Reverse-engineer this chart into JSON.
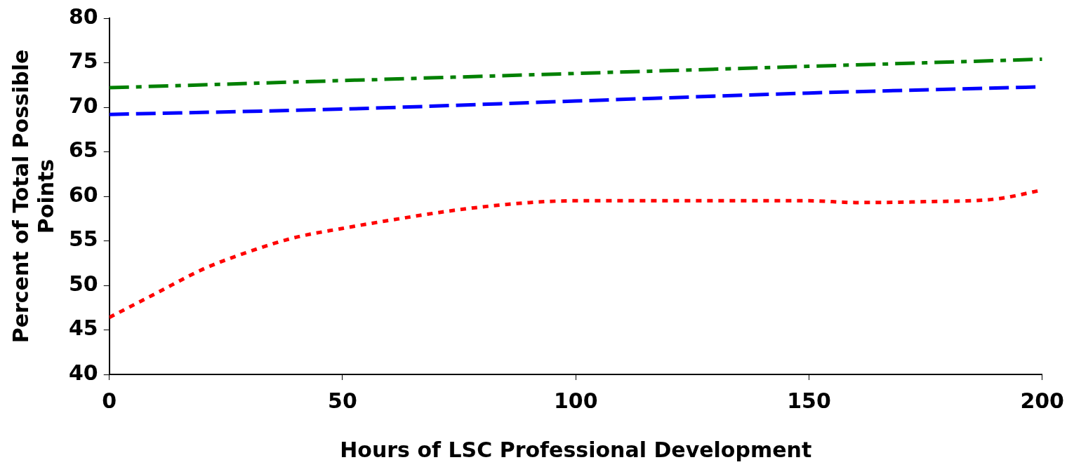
{
  "chart_data": {
    "type": "line",
    "xlabel": "Hours of LSC Professional Development",
    "ylabel": "Percent of Total Possible Points",
    "xlim": [
      0,
      200
    ],
    "xticks": [
      0,
      50,
      100,
      150,
      200
    ],
    "ylim": [
      40,
      80
    ],
    "yticks": [
      40,
      45,
      50,
      55,
      60,
      65,
      70,
      75,
      80
    ],
    "grid": false,
    "legend": false,
    "marker": "none",
    "series": [
      {
        "color": "#008000",
        "line_style": "dashdot",
        "x": [
          0,
          25,
          50,
          75,
          100,
          125,
          150,
          175,
          200
        ],
        "values": [
          72.2,
          72.6,
          73.0,
          73.4,
          73.8,
          74.2,
          74.6,
          75.0,
          75.4
        ]
      },
      {
        "color": "#0000ff",
        "line_style": "dashed",
        "x": [
          0,
          50,
          100,
          150,
          200
        ],
        "values": [
          69.2,
          69.8,
          70.7,
          71.6,
          72.3
        ]
      },
      {
        "color": "#ff0000",
        "line_style": "dotted",
        "x": [
          0,
          10,
          20,
          30,
          40,
          50,
          60,
          75,
          90,
          100,
          125,
          150,
          160,
          175,
          190,
          200
        ],
        "values": [
          46.4,
          49.1,
          51.8,
          53.8,
          55.4,
          56.4,
          57.3,
          58.5,
          59.3,
          59.5,
          59.5,
          59.5,
          59.3,
          59.4,
          59.7,
          60.7
        ]
      }
    ]
  }
}
